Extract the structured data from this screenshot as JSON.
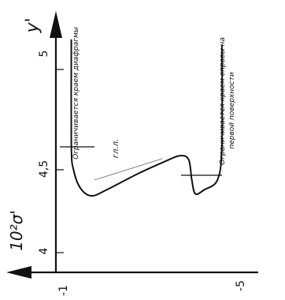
{
  "chart_data": {
    "type": "line",
    "title": "",
    "axes": {
      "y_prime": {
        "label": "y'",
        "ticks": [
          "4",
          "4,5",
          "5"
        ]
      },
      "sigma": {
        "label": "10²σ'",
        "ticks": [
          "-1",
          "-5"
        ]
      }
    },
    "series": [
      {
        "name": "",
        "points": [
          {
            "y": 5.15,
            "sigma": -1.1
          },
          {
            "y": 4.62,
            "sigma": -1.1
          },
          {
            "y": 4.5,
            "sigma": -1.15
          },
          {
            "y": 4.41,
            "sigma": -1.3
          },
          {
            "y": 4.37,
            "sigma": -1.55
          },
          {
            "y": 4.4,
            "sigma": -1.9
          },
          {
            "y": 4.48,
            "sigma": -2.6
          },
          {
            "y": 4.54,
            "sigma": -3.2
          },
          {
            "y": 4.57,
            "sigma": -3.55
          },
          {
            "y": 4.55,
            "sigma": -3.75
          },
          {
            "y": 4.45,
            "sigma": -3.82
          },
          {
            "y": 4.38,
            "sigma": -3.9
          },
          {
            "y": 4.4,
            "sigma": -4.1
          },
          {
            "y": 4.45,
            "sigma": -4.4
          },
          {
            "y": 4.62,
            "sigma": -4.5
          },
          {
            "y": 5.12,
            "sigma": -4.5
          }
        ]
      }
    ],
    "annotations": [
      {
        "id": "diaphragm",
        "text": "Ограничивается краем диафрагмы",
        "y": 4.62
      },
      {
        "id": "rim",
        "text": "Ограничивается краем оправы на первой поверхности",
        "y": 4.45
      },
      {
        "id": "gll",
        "text": "гл.л."
      }
    ]
  }
}
